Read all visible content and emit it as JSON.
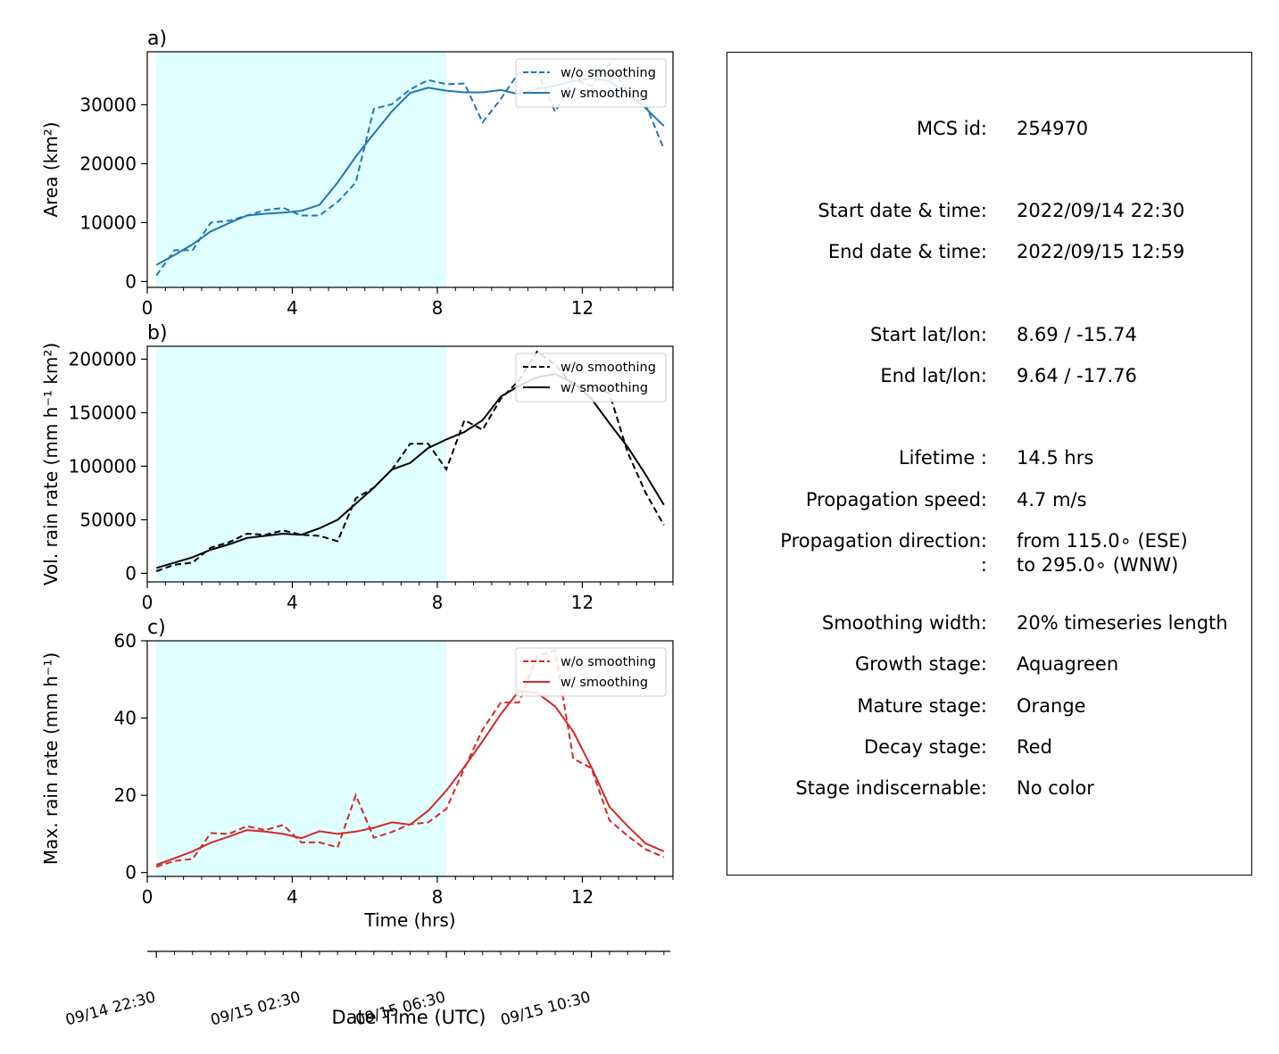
{
  "chart_data": [
    {
      "type": "line",
      "panel_label": "a)",
      "title": "",
      "xlabel": "",
      "ylabel": "Area  (km²)",
      "xlim": [
        0,
        14.5
      ],
      "ylim": [
        -1000,
        39000
      ],
      "x_ticks": [
        0,
        4,
        8,
        12
      ],
      "x_tick_labels": [
        "0",
        "4",
        "8",
        "12"
      ],
      "y_ticks": [
        0,
        10000,
        20000,
        30000
      ],
      "y_tick_labels": [
        "0",
        "10000",
        "20000",
        "30000"
      ],
      "shaded_span": [
        0.25,
        8.25
      ],
      "shade_color": "#e0ffff",
      "legend_position": "top-right",
      "x": [
        0.25,
        0.75,
        1.25,
        1.75,
        2.25,
        2.75,
        3.25,
        3.75,
        4.25,
        4.75,
        5.25,
        5.75,
        6.25,
        6.75,
        7.25,
        7.75,
        8.25,
        8.75,
        9.25,
        9.75,
        10.25,
        10.75,
        11.25,
        11.75,
        12.25,
        12.75,
        13.25,
        13.75,
        14.25
      ],
      "series": [
        {
          "name": "w/o smoothing",
          "style": "dashed",
          "color": "#1f77b4",
          "values": [
            1000,
            5300,
            5300,
            10000,
            10300,
            11200,
            12100,
            12500,
            11200,
            11200,
            13500,
            16800,
            29300,
            30100,
            32600,
            34200,
            33500,
            33600,
            27000,
            31000,
            35500,
            35700,
            28800,
            34300,
            33200,
            37000,
            32000,
            30000,
            22500
          ]
        },
        {
          "name": "w/ smoothing",
          "style": "solid",
          "color": "#1f77b4",
          "values": [
            2800,
            4500,
            6300,
            8500,
            9900,
            11200,
            11500,
            11700,
            12000,
            13000,
            16800,
            21200,
            25100,
            28900,
            32000,
            32900,
            32400,
            32100,
            32100,
            32500,
            31800,
            32700,
            33200,
            34000,
            34500,
            34000,
            31800,
            29400,
            26400
          ]
        }
      ]
    },
    {
      "type": "line",
      "panel_label": "b)",
      "title": "",
      "xlabel": "",
      "ylabel": "Vol. rain rate (mm h⁻¹ km²)",
      "xlim": [
        0,
        14.5
      ],
      "ylim": [
        -8000,
        212000
      ],
      "x_ticks": [
        0,
        4,
        8,
        12
      ],
      "x_tick_labels": [
        "0",
        "4",
        "8",
        "12"
      ],
      "y_ticks": [
        0,
        50000,
        100000,
        150000,
        200000
      ],
      "y_tick_labels": [
        "0",
        "50000",
        "100000",
        "150000",
        "200000"
      ],
      "shaded_span": [
        0.25,
        8.25
      ],
      "shade_color": "#e0ffff",
      "legend_position": "top-right",
      "x": [
        0.25,
        0.75,
        1.25,
        1.75,
        2.25,
        2.75,
        3.25,
        3.75,
        4.25,
        4.75,
        5.25,
        5.75,
        6.25,
        6.75,
        7.25,
        7.75,
        8.25,
        8.75,
        9.25,
        9.75,
        10.25,
        10.75,
        11.25,
        11.75,
        12.25,
        12.75,
        13.25,
        13.75,
        14.25
      ],
      "series": [
        {
          "name": "w/o smoothing",
          "style": "dashed",
          "color": "#000000",
          "values": [
            2000,
            8000,
            10000,
            24000,
            29000,
            37000,
            36000,
            40000,
            36000,
            35000,
            30000,
            70000,
            80000,
            97000,
            121000,
            121000,
            97000,
            143000,
            134000,
            163000,
            180000,
            207000,
            195000,
            175000,
            175000,
            168000,
            113000,
            75000,
            45000
          ]
        },
        {
          "name": "w/ smoothing",
          "style": "solid",
          "color": "#000000",
          "values": [
            5000,
            10000,
            15000,
            22000,
            27000,
            33000,
            35000,
            37000,
            36000,
            42000,
            50000,
            65000,
            80000,
            97000,
            103000,
            117000,
            125000,
            132000,
            143000,
            165000,
            175000,
            183000,
            186000,
            178000,
            163000,
            140000,
            118000,
            92000,
            64000
          ]
        }
      ]
    },
    {
      "type": "line",
      "panel_label": "c)",
      "title": "",
      "xlabel": "Time (hrs)",
      "ylabel": "Max. rain rate  (mm h⁻¹)",
      "xlim": [
        0,
        14.5
      ],
      "ylim": [
        -1,
        60
      ],
      "x_ticks": [
        0,
        4,
        8,
        12
      ],
      "x_tick_labels": [
        "0",
        "4",
        "8",
        "12"
      ],
      "y_ticks": [
        0,
        20,
        40,
        60
      ],
      "y_tick_labels": [
        "0",
        "20",
        "40",
        "60"
      ],
      "shaded_span": [
        0.25,
        8.25
      ],
      "shade_color": "#e0ffff",
      "legend_position": "top-right",
      "x": [
        0.25,
        0.75,
        1.25,
        1.75,
        2.25,
        2.75,
        3.25,
        3.75,
        4.25,
        4.75,
        5.25,
        5.75,
        6.25,
        6.75,
        7.25,
        7.75,
        8.25,
        8.75,
        9.25,
        9.75,
        10.25,
        10.75,
        11.25,
        11.75,
        12.25,
        12.75,
        13.25,
        13.75,
        14.25
      ],
      "series": [
        {
          "name": "w/o smoothing",
          "style": "dashed",
          "color": "#d62728",
          "values": [
            1.5,
            3,
            3.5,
            10.2,
            10,
            12,
            11,
            12.3,
            7.8,
            7.8,
            6.5,
            20,
            9,
            10.5,
            12.5,
            13,
            16.5,
            27,
            37,
            44,
            44,
            56,
            57.5,
            29.5,
            27,
            13.5,
            9.5,
            6,
            4
          ]
        },
        {
          "name": "w/ smoothing",
          "style": "solid",
          "color": "#d62728",
          "values": [
            2,
            3.7,
            5.5,
            7.7,
            9.3,
            11,
            10.6,
            10,
            8.9,
            10.7,
            10,
            10.6,
            11.6,
            13,
            12.4,
            16,
            21.2,
            27.4,
            34,
            41,
            47,
            46.5,
            43,
            36.5,
            27.3,
            17,
            12,
            7.5,
            5.5
          ]
        }
      ]
    }
  ],
  "date_axis": {
    "label": "Date Time (UTC)",
    "tick_labels": [
      {
        "text": "09/14 22:30",
        "hour": 0.25
      },
      {
        "text": "09/15 02:30",
        "hour": 4.25
      },
      {
        "text": "09/15 06:30",
        "hour": 8.25
      },
      {
        "text": "09/15 10:30",
        "hour": 12.25
      }
    ]
  },
  "info": [
    {
      "key": "MCS id:",
      "value": "254970"
    },
    {
      "key": "Start date & time:",
      "value": "2022/09/14 22:30"
    },
    {
      "key": "End date & time:",
      "value": "2022/09/15 12:59"
    },
    {
      "key": "Start lat/lon:",
      "value": "8.69 / -15.74"
    },
    {
      "key": "End lat/lon:",
      "value": "9.64 / -17.76"
    },
    {
      "key": "Lifetime :",
      "value": "14.5 hrs"
    },
    {
      "key": "Propagation speed:",
      "value": "4.7 m/s"
    },
    {
      "key": "Propagation direction:",
      "value": "from 115.0∘ (ESE)"
    },
    {
      "key": ":",
      "value": "to   295.0∘ (WNW)"
    },
    {
      "key": "Smoothing width:",
      "value": "20% timeseries length"
    },
    {
      "key": "Growth stage:",
      "value": "Aquagreen"
    },
    {
      "key": "Mature stage:",
      "value": "Orange"
    },
    {
      "key": "Decay stage:",
      "value": "Red"
    },
    {
      "key": "Stage indiscernable:",
      "value": "No color"
    }
  ]
}
